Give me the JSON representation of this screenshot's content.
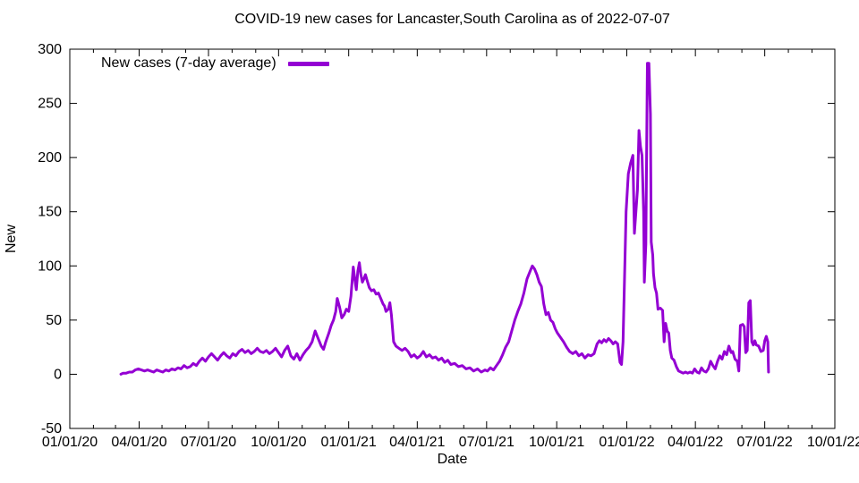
{
  "title": "COVID-19 new cases for Lancaster,South Carolina as of 2022-07-07",
  "legend": {
    "label": "New cases (7-day average)"
  },
  "axes": {
    "x_label": "Date",
    "y_label": "New"
  },
  "colors": {
    "line": "#9400d3",
    "axis": "#000000",
    "background": "#ffffff"
  },
  "chart_data": {
    "type": "line",
    "title": "COVID-19 new cases for Lancaster,South Carolina as of 2022-07-07",
    "xlabel": "Date",
    "ylabel": "New",
    "legend_position": "top-left-inside",
    "grid": false,
    "ylim": [
      -50,
      300
    ],
    "y_ticks": [
      -50,
      0,
      50,
      100,
      150,
      200,
      250,
      300
    ],
    "xlim_days_from_2020_01_01": [
      0,
      1004
    ],
    "x_tick_labels": [
      "01/01/20",
      "04/01/20",
      "07/01/20",
      "10/01/20",
      "01/01/21",
      "04/01/21",
      "07/01/21",
      "10/01/21",
      "01/01/22",
      "04/01/22",
      "07/01/22",
      "10/01/22"
    ],
    "x_tick_days": [
      0,
      91,
      182,
      274,
      366,
      456,
      547,
      639,
      731,
      821,
      912,
      1004
    ],
    "x_minor_tick_days": [
      31,
      60,
      121,
      152,
      213,
      244,
      305,
      335,
      397,
      425,
      486,
      517,
      578,
      609,
      670,
      700,
      762,
      790,
      851,
      882,
      943,
      974
    ],
    "series": [
      {
        "name": "New cases (7-day average)",
        "color": "#9400d3",
        "points_day_value": [
          [
            67,
            0
          ],
          [
            70,
            1
          ],
          [
            74,
            1
          ],
          [
            78,
            2
          ],
          [
            82,
            2
          ],
          [
            86,
            4
          ],
          [
            90,
            5
          ],
          [
            94,
            4
          ],
          [
            98,
            3
          ],
          [
            102,
            4
          ],
          [
            106,
            3
          ],
          [
            110,
            2
          ],
          [
            114,
            4
          ],
          [
            118,
            3
          ],
          [
            122,
            2
          ],
          [
            126,
            4
          ],
          [
            130,
            3
          ],
          [
            134,
            5
          ],
          [
            138,
            4
          ],
          [
            142,
            6
          ],
          [
            146,
            5
          ],
          [
            150,
            8
          ],
          [
            154,
            6
          ],
          [
            158,
            7
          ],
          [
            162,
            10
          ],
          [
            166,
            8
          ],
          [
            170,
            12
          ],
          [
            174,
            15
          ],
          [
            178,
            12
          ],
          [
            182,
            16
          ],
          [
            186,
            19
          ],
          [
            190,
            16
          ],
          [
            194,
            13
          ],
          [
            198,
            17
          ],
          [
            202,
            20
          ],
          [
            206,
            17
          ],
          [
            210,
            15
          ],
          [
            214,
            19
          ],
          [
            218,
            17
          ],
          [
            222,
            21
          ],
          [
            226,
            23
          ],
          [
            230,
            20
          ],
          [
            234,
            22
          ],
          [
            238,
            19
          ],
          [
            242,
            21
          ],
          [
            246,
            24
          ],
          [
            250,
            21
          ],
          [
            254,
            20
          ],
          [
            258,
            22
          ],
          [
            262,
            19
          ],
          [
            266,
            21
          ],
          [
            270,
            24
          ],
          [
            274,
            20
          ],
          [
            278,
            16
          ],
          [
            282,
            22
          ],
          [
            286,
            26
          ],
          [
            290,
            17
          ],
          [
            294,
            14
          ],
          [
            298,
            19
          ],
          [
            302,
            13
          ],
          [
            306,
            18
          ],
          [
            310,
            22
          ],
          [
            314,
            25
          ],
          [
            318,
            30
          ],
          [
            322,
            40
          ],
          [
            326,
            33
          ],
          [
            330,
            26
          ],
          [
            333,
            23
          ],
          [
            336,
            30
          ],
          [
            340,
            38
          ],
          [
            343,
            45
          ],
          [
            346,
            50
          ],
          [
            349,
            58
          ],
          [
            351,
            70
          ],
          [
            354,
            62
          ],
          [
            357,
            52
          ],
          [
            360,
            55
          ],
          [
            363,
            60
          ],
          [
            366,
            58
          ],
          [
            369,
            72
          ],
          [
            372,
            99
          ],
          [
            374,
            88
          ],
          [
            376,
            78
          ],
          [
            378,
            95
          ],
          [
            380,
            103
          ],
          [
            382,
            92
          ],
          [
            384,
            85
          ],
          [
            386,
            88
          ],
          [
            388,
            92
          ],
          [
            390,
            87
          ],
          [
            393,
            80
          ],
          [
            396,
            77
          ],
          [
            399,
            78
          ],
          [
            402,
            74
          ],
          [
            405,
            75
          ],
          [
            408,
            70
          ],
          [
            411,
            65
          ],
          [
            413,
            63
          ],
          [
            415,
            58
          ],
          [
            418,
            60
          ],
          [
            420,
            66
          ],
          [
            422,
            55
          ],
          [
            425,
            30
          ],
          [
            428,
            26
          ],
          [
            432,
            24
          ],
          [
            436,
            22
          ],
          [
            440,
            24
          ],
          [
            444,
            21
          ],
          [
            448,
            16
          ],
          [
            452,
            18
          ],
          [
            456,
            15
          ],
          [
            460,
            17
          ],
          [
            464,
            21
          ],
          [
            468,
            16
          ],
          [
            472,
            18
          ],
          [
            476,
            15
          ],
          [
            480,
            16
          ],
          [
            484,
            13
          ],
          [
            488,
            15
          ],
          [
            492,
            11
          ],
          [
            496,
            13
          ],
          [
            500,
            9
          ],
          [
            505,
            10
          ],
          [
            510,
            7
          ],
          [
            515,
            8
          ],
          [
            520,
            5
          ],
          [
            525,
            6
          ],
          [
            530,
            3
          ],
          [
            535,
            5
          ],
          [
            540,
            2
          ],
          [
            545,
            4
          ],
          [
            548,
            3
          ],
          [
            552,
            6
          ],
          [
            556,
            4
          ],
          [
            560,
            8
          ],
          [
            564,
            12
          ],
          [
            568,
            18
          ],
          [
            572,
            25
          ],
          [
            576,
            30
          ],
          [
            580,
            40
          ],
          [
            584,
            50
          ],
          [
            588,
            58
          ],
          [
            592,
            65
          ],
          [
            596,
            75
          ],
          [
            600,
            88
          ],
          [
            604,
            95
          ],
          [
            607,
            100
          ],
          [
            610,
            97
          ],
          [
            613,
            92
          ],
          [
            616,
            85
          ],
          [
            619,
            81
          ],
          [
            622,
            65
          ],
          [
            625,
            55
          ],
          [
            628,
            57
          ],
          [
            631,
            50
          ],
          [
            634,
            48
          ],
          [
            637,
            42
          ],
          [
            640,
            38
          ],
          [
            644,
            34
          ],
          [
            648,
            30
          ],
          [
            652,
            25
          ],
          [
            656,
            21
          ],
          [
            660,
            19
          ],
          [
            664,
            21
          ],
          [
            668,
            17
          ],
          [
            672,
            19
          ],
          [
            676,
            15
          ],
          [
            680,
            18
          ],
          [
            684,
            17
          ],
          [
            688,
            19
          ],
          [
            692,
            28
          ],
          [
            695,
            31
          ],
          [
            698,
            29
          ],
          [
            701,
            32
          ],
          [
            704,
            30
          ],
          [
            707,
            33
          ],
          [
            710,
            31
          ],
          [
            713,
            28
          ],
          [
            716,
            30
          ],
          [
            719,
            28
          ],
          [
            722,
            11
          ],
          [
            724,
            9
          ],
          [
            726,
            30
          ],
          [
            728,
            90
          ],
          [
            730,
            150
          ],
          [
            733,
            185
          ],
          [
            736,
            195
          ],
          [
            739,
            202
          ],
          [
            741,
            130
          ],
          [
            743,
            150
          ],
          [
            745,
            170
          ],
          [
            747,
            225
          ],
          [
            749,
            210
          ],
          [
            751,
            202
          ],
          [
            753,
            150
          ],
          [
            754,
            85
          ],
          [
            756,
            120
          ],
          [
            758,
            287
          ],
          [
            760,
            287
          ],
          [
            762,
            240
          ],
          [
            763,
            122
          ],
          [
            765,
            110
          ],
          [
            766,
            93
          ],
          [
            768,
            80
          ],
          [
            770,
            75
          ],
          [
            772,
            60
          ],
          [
            775,
            61
          ],
          [
            778,
            59
          ],
          [
            780,
            30
          ],
          [
            782,
            47
          ],
          [
            784,
            40
          ],
          [
            786,
            38
          ],
          [
            788,
            22
          ],
          [
            790,
            15
          ],
          [
            793,
            13
          ],
          [
            796,
            7
          ],
          [
            799,
            3
          ],
          [
            802,
            2
          ],
          [
            805,
            1
          ],
          [
            808,
            2
          ],
          [
            811,
            1
          ],
          [
            814,
            2
          ],
          [
            817,
            1
          ],
          [
            820,
            5
          ],
          [
            823,
            2
          ],
          [
            826,
            1
          ],
          [
            829,
            6
          ],
          [
            832,
            3
          ],
          [
            835,
            2
          ],
          [
            838,
            5
          ],
          [
            841,
            12
          ],
          [
            844,
            8
          ],
          [
            847,
            5
          ],
          [
            850,
            12
          ],
          [
            853,
            17
          ],
          [
            856,
            14
          ],
          [
            859,
            21
          ],
          [
            862,
            18
          ],
          [
            865,
            26
          ],
          [
            868,
            20
          ],
          [
            870,
            21
          ],
          [
            873,
            14
          ],
          [
            876,
            12
          ],
          [
            878,
            3
          ],
          [
            880,
            45
          ],
          [
            883,
            46
          ],
          [
            885,
            44
          ],
          [
            887,
            20
          ],
          [
            889,
            22
          ],
          [
            891,
            66
          ],
          [
            893,
            68
          ],
          [
            895,
            30
          ],
          [
            897,
            27
          ],
          [
            899,
            31
          ],
          [
            901,
            27
          ],
          [
            904,
            26
          ],
          [
            907,
            21
          ],
          [
            910,
            22
          ],
          [
            912,
            31
          ],
          [
            914,
            35
          ],
          [
            916,
            30
          ],
          [
            917,
            2
          ]
        ]
      }
    ]
  }
}
